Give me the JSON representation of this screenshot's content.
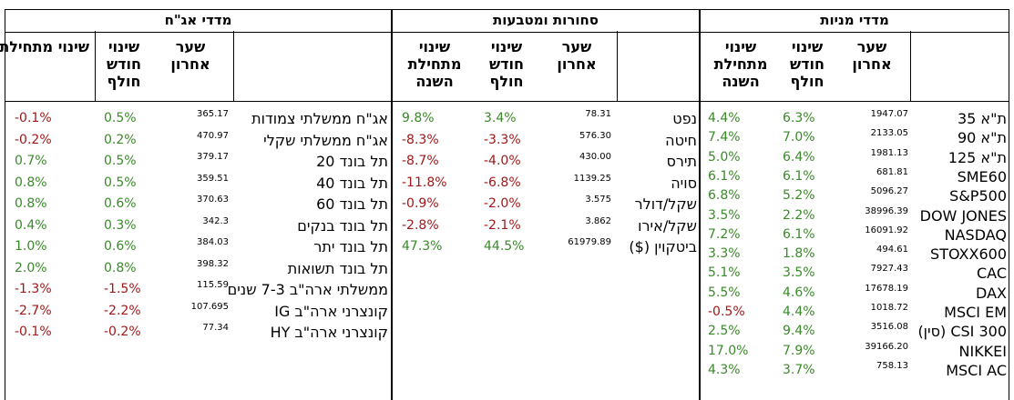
{
  "sections": {
    "bonds": {
      "title": "מדדי אג\"ח",
      "headers": {
        "last": "שער אחרון",
        "month": "שינוי חודש חולף",
        "ytd": "שינוי מתחילת השנה"
      },
      "rows": [
        {
          "name": "אג\"ח ממשלתי צמודות",
          "price": "365.17",
          "month": "0.5%",
          "ytd": "-0.1%"
        },
        {
          "name": "אג\"ח ממשלתי שקלי",
          "price": "470.97",
          "month": "0.2%",
          "ytd": "-0.2%"
        },
        {
          "name": "תל בונד 20",
          "price": "379.17",
          "month": "0.5%",
          "ytd": "0.7%"
        },
        {
          "name": "תל בונד 40",
          "price": "359.51",
          "month": "0.5%",
          "ytd": "0.8%"
        },
        {
          "name": "תל בונד 60",
          "price": "370.63",
          "month": "0.6%",
          "ytd": "0.8%"
        },
        {
          "name": "תל בונד בנקים",
          "price": "342.3",
          "month": "0.3%",
          "ytd": "0.4%"
        },
        {
          "name": "תל בונד יתר",
          "price": "384.03",
          "month": "0.6%",
          "ytd": "1.0%"
        },
        {
          "name": "תל בונד תשואות",
          "price": "398.32",
          "month": "0.8%",
          "ytd": "2.0%"
        },
        {
          "name": "ממשלתי ארה\"ב 7-3 שנים",
          "price": "115.59",
          "month": "-1.5%",
          "ytd": "-1.3%"
        },
        {
          "name": "קונצרני ארה\"ב IG",
          "price": "107.695",
          "month": "-2.2%",
          "ytd": "-2.7%"
        },
        {
          "name": "קונצרני ארה\"ב HY",
          "price": "77.34",
          "month": "-0.2%",
          "ytd": "-0.1%"
        }
      ]
    },
    "commodities": {
      "title": "סחורות ומטבעות",
      "headers": {
        "last": "שער אחרון",
        "month": "שינוי חודש חולף",
        "ytd": "שינוי מתחילת השנה"
      },
      "rows": [
        {
          "name": "נפט",
          "price": "78.31",
          "month": "3.4%",
          "ytd": "9.8%"
        },
        {
          "name": "חיטה",
          "price": "576.30",
          "month": "-3.3%",
          "ytd": "-8.3%"
        },
        {
          "name": "תירס",
          "price": "430.00",
          "month": "-4.0%",
          "ytd": "-8.7%"
        },
        {
          "name": "סויה",
          "price": "1139.25",
          "month": "-6.8%",
          "ytd": "-11.8%"
        },
        {
          "name": "שקל/דולר",
          "price": "3.575",
          "month": "-2.0%",
          "ytd": "-0.9%"
        },
        {
          "name": "שקל/אירו",
          "price": "3.862",
          "month": "-2.1%",
          "ytd": "-2.8%"
        },
        {
          "name": "ביטקוין ($)",
          "price": "61979.89",
          "month": "44.5%",
          "ytd": "47.3%"
        }
      ]
    },
    "equities": {
      "title": "מדדי מניות",
      "headers": {
        "last": "שער אחרון",
        "month": "שינוי חודש חולף",
        "ytd": "שינוי מתחילת השנה"
      },
      "rows": [
        {
          "name": "ת\"א 35",
          "price": "1947.07",
          "month": "6.3%",
          "ytd": "4.4%"
        },
        {
          "name": "ת\"א 90",
          "price": "2133.05",
          "month": "7.0%",
          "ytd": "7.4%"
        },
        {
          "name": "ת\"א 125",
          "price": "1981.13",
          "month": "6.4%",
          "ytd": "5.0%"
        },
        {
          "name": "SME60",
          "price": "681.81",
          "month": "6.1%",
          "ytd": "6.1%"
        },
        {
          "name": "S&P500",
          "price": "5096.27",
          "month": "5.2%",
          "ytd": "6.8%"
        },
        {
          "name": "DOW JONES",
          "price": "38996.39",
          "month": "2.2%",
          "ytd": "3.5%"
        },
        {
          "name": "NASDAQ",
          "price": "16091.92",
          "month": "6.1%",
          "ytd": "7.2%"
        },
        {
          "name": "STOXX600",
          "price": "494.61",
          "month": "1.8%",
          "ytd": "3.3%"
        },
        {
          "name": "CAC",
          "price": "7927.43",
          "month": "3.5%",
          "ytd": "5.1%"
        },
        {
          "name": "DAX",
          "price": "17678.19",
          "month": "4.6%",
          "ytd": "5.5%"
        },
        {
          "name": "MSCI EM",
          "price": "1018.72",
          "month": "4.4%",
          "ytd": "-0.5%"
        },
        {
          "name": "CSI 300 (סין)",
          "price": "3516.08",
          "month": "9.4%",
          "ytd": "2.5%"
        },
        {
          "name": "NIKKEI",
          "price": "39166.20",
          "month": "7.9%",
          "ytd": "17.0%"
        },
        {
          "name": "MSCI AC",
          "price": "758.13",
          "month": "3.7%",
          "ytd": "4.3%"
        }
      ]
    }
  },
  "colors": {
    "positive": "#3a8a2a",
    "negative": "#a01818"
  }
}
